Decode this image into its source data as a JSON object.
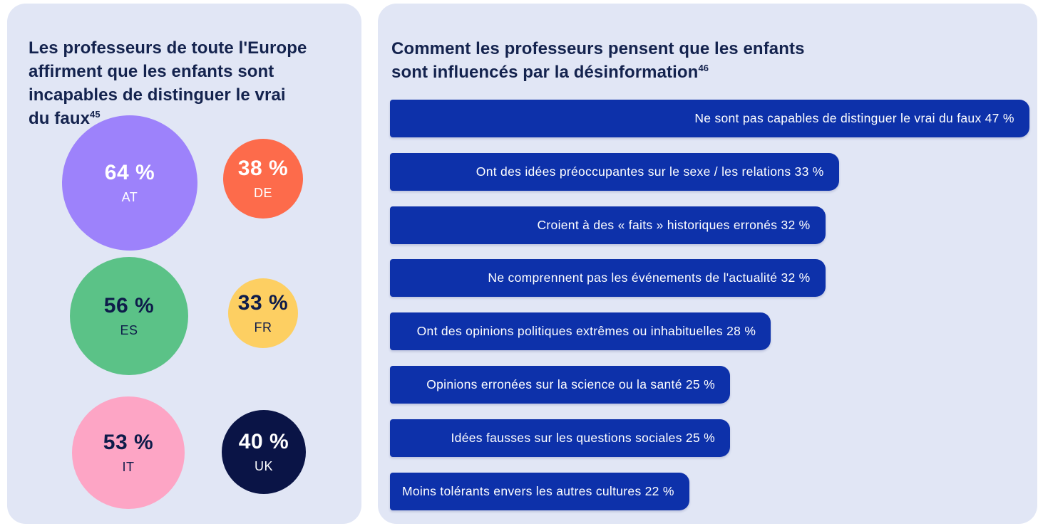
{
  "page": {
    "background": "#ffffff",
    "panel_background": "#e1e6f5",
    "title_color": "#14234e"
  },
  "panels": {
    "left": {
      "title_lines": {
        "0": "Les professeurs de toute l'Europe",
        "1": "affirment que les enfants sont",
        "2": "incapables de distinguer le vrai",
        "3": "du faux"
      },
      "footnote": "45"
    },
    "right": {
      "title_lines": {
        "0": "Comment les professeurs pensent que les enfants",
        "1": "sont influencés par la désinformation"
      },
      "footnote": "46"
    }
  },
  "chart_data": [
    {
      "type": "scatter",
      "variant": "bubble",
      "title": "Les professeurs de toute l'Europe affirment que les enfants sont incapables de distinguer le vrai du faux",
      "footnote_marker": "45",
      "value_unit": "%",
      "points": [
        {
          "country": "AT",
          "value": 64,
          "value_label": "64 %",
          "color": "#9d82fb",
          "text_color": "#ffffff"
        },
        {
          "country": "DE",
          "value": 38,
          "value_label": "38 %",
          "color": "#fd6b4b",
          "text_color": "#ffffff"
        },
        {
          "country": "ES",
          "value": 56,
          "value_label": "56 %",
          "color": "#5bc287",
          "text_color": "#0e1c4a"
        },
        {
          "country": "FR",
          "value": 33,
          "value_label": "33 %",
          "color": "#fdcf62",
          "text_color": "#0e1c4a"
        },
        {
          "country": "IT",
          "value": 53,
          "value_label": "53 %",
          "color": "#fda5c5",
          "text_color": "#0e1c4a"
        },
        {
          "country": "UK",
          "value": 40,
          "value_label": "40 %",
          "color": "#0a1446",
          "text_color": "#ffffff"
        }
      ]
    },
    {
      "type": "bar",
      "orientation": "horizontal",
      "title": "Comment les professeurs pensent que les enfants sont influencés par la désinformation",
      "footnote_marker": "46",
      "bar_color": "#0d31aa",
      "label_color": "#ffffff",
      "xlim": [
        0,
        47
      ],
      "grid": false,
      "legend": false,
      "categories": [
        "Ne sont pas capables de distinguer le vrai du faux",
        "Ont des idées préoccupantes sur le sexe / les relations",
        "Croient à des « faits » historiques erronés",
        "Ne comprennent pas les événements de l'actualité",
        "Ont des opinions politiques extrêmes ou inhabituelles",
        "Opinions erronées sur la science ou la santé",
        "Idées fausses sur les questions sociales",
        "Moins tolérants envers les autres cultures"
      ],
      "values": [
        47,
        33,
        32,
        32,
        28,
        25,
        25,
        22
      ],
      "labels": [
        "Ne sont pas capables de distinguer le vrai du faux 47 %",
        "Ont des idées préoccupantes sur le sexe / les relations 33 %",
        "Croient à des « faits » historiques erronés 32 %",
        "Ne comprennent pas les événements de l'actualité 32 %",
        "Ont des opinions politiques extrêmes ou inhabituelles 28 %",
        "Opinions erronées sur la science ou la santé 25 %",
        "Idées fausses sur les questions sociales 25 %",
        "Moins tolérants envers les autres cultures 22 %"
      ]
    }
  ]
}
